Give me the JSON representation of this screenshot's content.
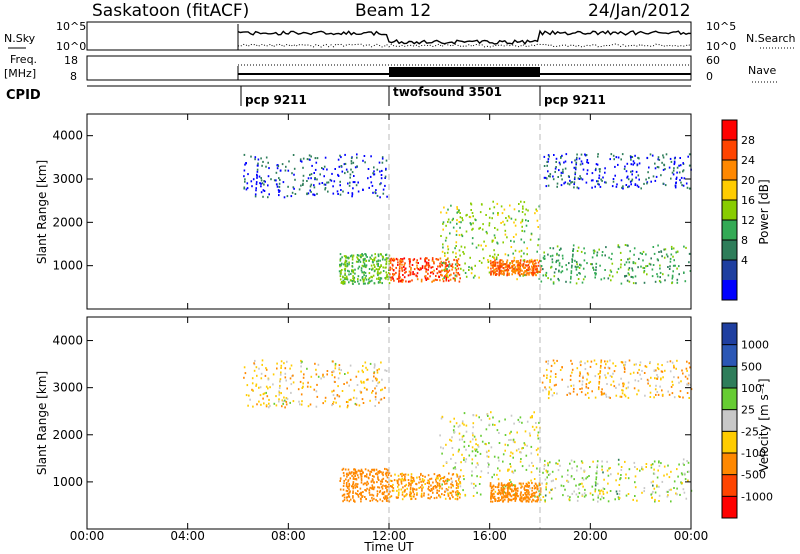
{
  "header": {
    "station": "Saskatoon (fitACF)",
    "beam": "Beam 12",
    "date": "24/Jan/2012"
  },
  "status_panels": {
    "nsky_label": "N.Sky",
    "nsearch_label": "N.Search",
    "freq_label_1": "Freq.",
    "freq_label_2": "[MHz]",
    "nave_label": "Nave",
    "cpid_label": "CPID",
    "nsky_ticks": [
      "10^5",
      "10^0"
    ],
    "nsearch_ticks": [
      "10^5",
      "10^0"
    ],
    "freq_ticks": [
      "18",
      "8"
    ],
    "nave_ticks": [
      "60",
      "0"
    ],
    "cpid_segments": [
      {
        "label": "pcp 9211",
        "start": 6,
        "end": 12
      },
      {
        "label": "twofsound 3501",
        "start": 12,
        "end": 18
      },
      {
        "label": "pcp 9211",
        "start": 18,
        "end": 24
      }
    ]
  },
  "chart_data": [
    {
      "type": "heatmap",
      "title": "",
      "xlabel": "Time UT",
      "ylabel": "Slant Range [km]",
      "xlim": [
        0,
        24
      ],
      "ylim": [
        0,
        4500
      ],
      "x_ticks": [
        "00:00",
        "04:00",
        "08:00",
        "12:00",
        "16:00",
        "20:00",
        "00:00"
      ],
      "y_ticks": [
        "1000",
        "2000",
        "3000",
        "4000"
      ],
      "colorbar_label": "Power [dB]",
      "colorbar_ticks": [
        "28",
        "24",
        "20",
        "16",
        "12",
        "8",
        "4"
      ],
      "colorbar_colors": [
        "#ff0000",
        "#ff4400",
        "#ff8800",
        "#ffcc00",
        "#88cc00",
        "#33aa55",
        "#2e7d5a",
        "#1f3fa0",
        "#0000ff"
      ],
      "scatter_regions": [
        {
          "t0": 6.2,
          "t1": 11.9,
          "r0": 2600,
          "r1": 3600,
          "value": 4
        },
        {
          "t0": 10.0,
          "t1": 12.0,
          "r0": 600,
          "r1": 1300,
          "value": 12
        },
        {
          "t0": 12.0,
          "t1": 14.8,
          "r0": 650,
          "r1": 1200,
          "value": 26
        },
        {
          "t0": 14.0,
          "t1": 18.0,
          "r0": 700,
          "r1": 2500,
          "value": 14
        },
        {
          "t0": 16.0,
          "t1": 18.0,
          "r0": 800,
          "r1": 1150,
          "value": 24
        },
        {
          "t0": 18.0,
          "t1": 24.0,
          "r0": 600,
          "r1": 1500,
          "value": 10
        },
        {
          "t0": 18.0,
          "t1": 24.0,
          "r0": 2800,
          "r1": 3600,
          "value": 4
        }
      ]
    },
    {
      "type": "heatmap",
      "title": "",
      "xlabel": "Time UT",
      "ylabel": "Slant Range [km]",
      "xlim": [
        0,
        24
      ],
      "ylim": [
        0,
        4500
      ],
      "x_ticks": [
        "00:00",
        "04:00",
        "08:00",
        "12:00",
        "16:00",
        "20:00",
        "00:00"
      ],
      "y_ticks": [
        "1000",
        "2000",
        "3000",
        "4000"
      ],
      "colorbar_label": "Velocity [m s⁻¹]",
      "colorbar_ticks": [
        "1000",
        "500",
        "100",
        "25",
        "-25",
        "-100",
        "-500",
        "-1000"
      ],
      "colorbar_colors": [
        "#1f3fa0",
        "#2b57b5",
        "#2e7d5a",
        "#66cc33",
        "#c8c8c8",
        "#ffcc00",
        "#ff8800",
        "#ff4400",
        "#ff0000"
      ],
      "scatter_regions": [
        {
          "t0": 6.2,
          "t1": 11.9,
          "r0": 2600,
          "r1": 3600,
          "value": -60
        },
        {
          "t0": 10.0,
          "t1": 12.0,
          "r0": 600,
          "r1": 1300,
          "value": -200
        },
        {
          "t0": 12.0,
          "t1": 14.8,
          "r0": 650,
          "r1": 1200,
          "value": -150
        },
        {
          "t0": 14.0,
          "t1": 18.0,
          "r0": 700,
          "r1": 2500,
          "value": 0
        },
        {
          "t0": 16.0,
          "t1": 18.0,
          "r0": 600,
          "r1": 1000,
          "value": -400
        },
        {
          "t0": 18.0,
          "t1": 24.0,
          "r0": 600,
          "r1": 1500,
          "value": 10
        },
        {
          "t0": 18.0,
          "t1": 24.0,
          "r0": 2800,
          "r1": 3600,
          "value": -80
        }
      ]
    }
  ]
}
